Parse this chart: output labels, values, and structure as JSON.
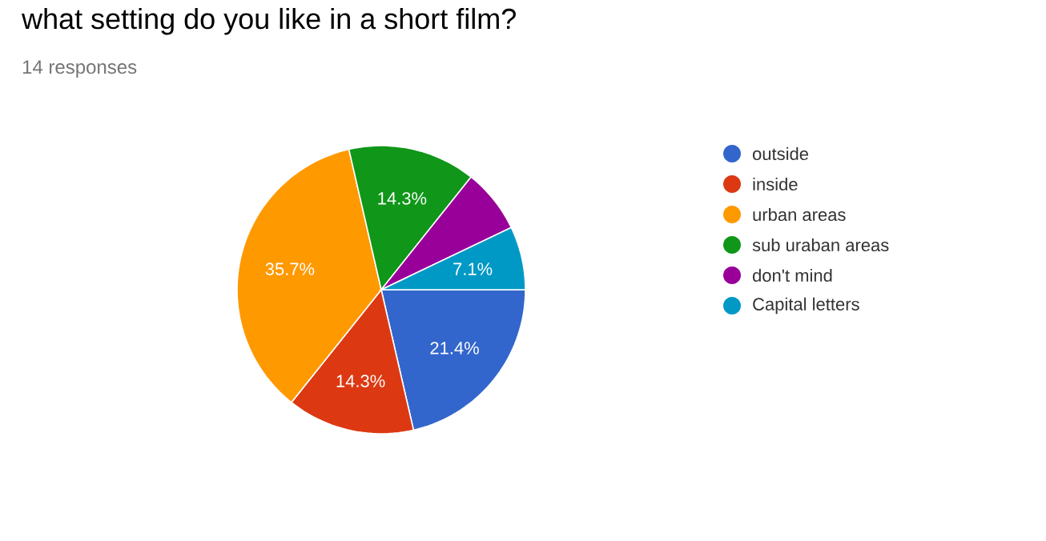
{
  "chart_data": {
    "type": "pie",
    "title": "what setting do you like in a short film?",
    "subtitle": "14 responses",
    "categories": [
      "outside",
      "inside",
      "urban areas",
      "sub uraban areas",
      "don't mind",
      "Capital letters"
    ],
    "values": [
      21.4,
      14.3,
      35.7,
      14.3,
      7.2,
      7.1
    ],
    "value_labels": [
      "21.4%",
      "14.3%",
      "35.7%",
      "14.3%",
      null,
      "7.1%"
    ],
    "colors": [
      "#3366cc",
      "#dc3912",
      "#ff9900",
      "#109618",
      "#990099",
      "#0099c6"
    ],
    "legend": "right"
  }
}
